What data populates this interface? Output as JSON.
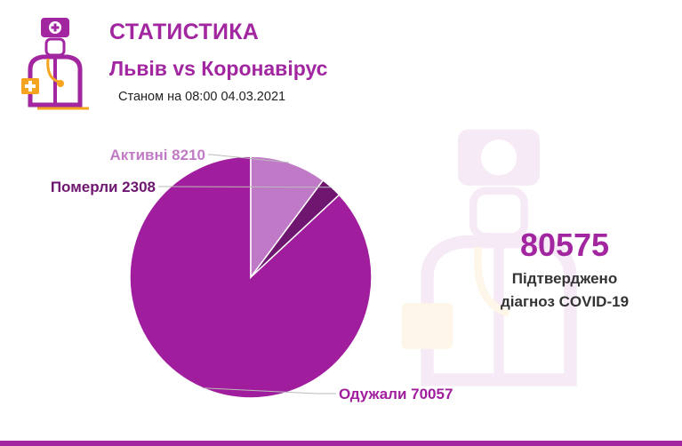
{
  "header": {
    "title": "СТАТИСТИКА",
    "subtitle": "Львів vs Коронавірус",
    "date": "Станом на 08:00 04.03.2021"
  },
  "summary": {
    "value": "80575",
    "caption_line1": "Підтверджено",
    "caption_line2": "діагноз COVID-19"
  },
  "colors": {
    "brand": "#a126a0",
    "logo_orange": "#f4a41e"
  },
  "icons": [
    "doctor-logo-icon",
    "doctor-watermark-icon"
  ],
  "chart_data": {
    "type": "pie",
    "slices": [
      {
        "name": "Одужали",
        "value": 70057,
        "label": "Одужали 70057",
        "color": "#a01d9e",
        "label_color": "#a01d9e"
      },
      {
        "name": "Померли",
        "value": 2308,
        "label": "Померли 2308",
        "color": "#6e1670",
        "label_color": "#6e1670"
      },
      {
        "name": "Активні",
        "value": 8210,
        "label": "Активні 8210",
        "color": "#c079c6",
        "label_color": "#c07bc5"
      }
    ],
    "start": "top",
    "direction": "counterclockwise"
  }
}
